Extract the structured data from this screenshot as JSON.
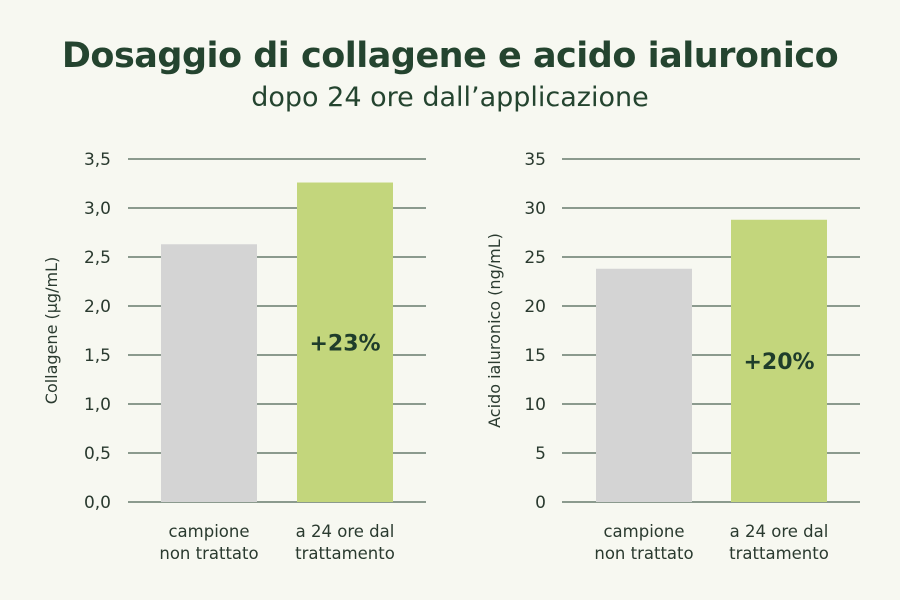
{
  "header": {
    "title": "Dosaggio di collagene e acido ialuronico",
    "subtitle": "dopo 24 ore dall’applicazione"
  },
  "colors": {
    "grid": "#1f3d2b",
    "bar_untreated": "#d4d4d4",
    "bar_treated": "#c3d67c",
    "title": "#24442f"
  },
  "chart_data": [
    {
      "type": "bar",
      "ylabel": "Collagene (µg/mL)",
      "categories": [
        [
          "campione",
          "non trattato"
        ],
        [
          "a 24 ore dal",
          "trattamento"
        ]
      ],
      "values": [
        2.63,
        3.26
      ],
      "ylim": [
        0,
        3.5
      ],
      "yticks": [
        "0,0",
        "0,5",
        "1,0",
        "1,5",
        "2,0",
        "2,5",
        "3,0",
        "3,5"
      ],
      "annotation": "+23%",
      "grid": true
    },
    {
      "type": "bar",
      "ylabel": "Acido ialuronico (ng/mL)",
      "categories": [
        [
          "campione",
          "non trattato"
        ],
        [
          "a 24 ore dal",
          "trattamento"
        ]
      ],
      "values": [
        23.8,
        28.8
      ],
      "ylim": [
        0,
        35
      ],
      "yticks": [
        "0",
        "5",
        "10",
        "15",
        "20",
        "25",
        "30",
        "35"
      ],
      "annotation": "+20%",
      "grid": true
    }
  ]
}
